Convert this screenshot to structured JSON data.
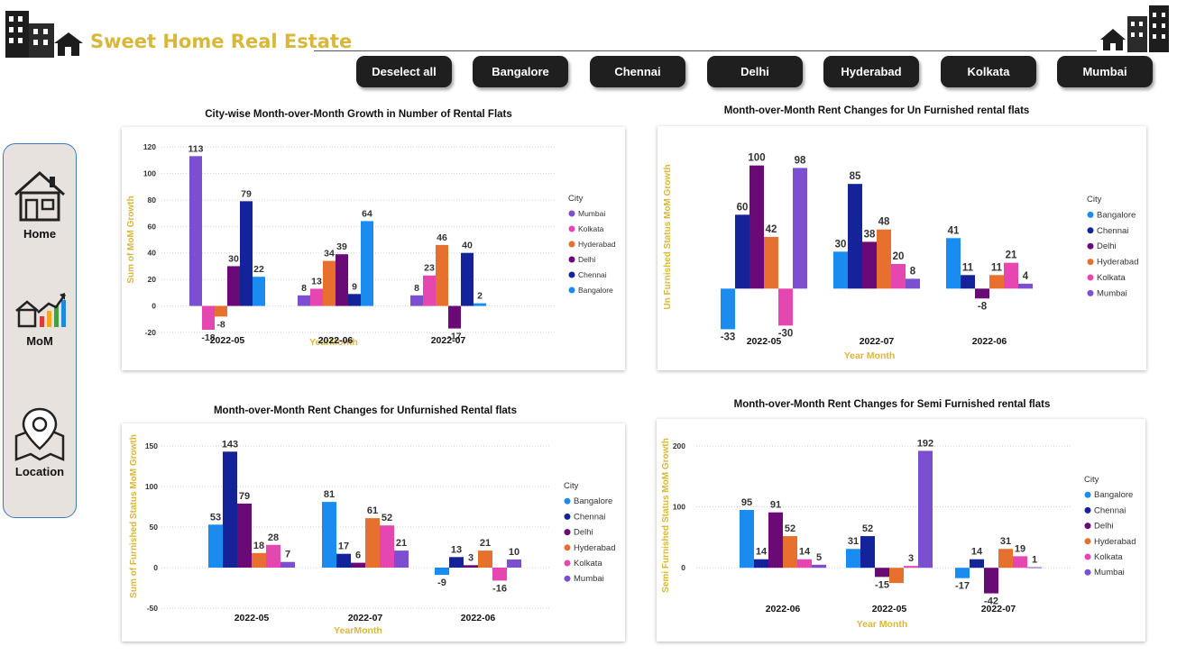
{
  "brand": {
    "name": "Sweet Home Real Estate"
  },
  "filters": [
    "Deselect all",
    "Bangalore",
    "Chennai",
    "Delhi",
    "Hyderabad",
    "Kolkata",
    "Mumbai"
  ],
  "nav": [
    {
      "label": "Home",
      "icon": "house-icon"
    },
    {
      "label": "MoM",
      "icon": "growth-chart-icon"
    },
    {
      "label": "Location",
      "icon": "map-pin-icon"
    }
  ],
  "colors": {
    "Bangalore": "#1a8cf0",
    "Chennai": "#14239a",
    "Hyderabad": "#e8702e",
    "Delhi": "#6a0a77",
    "Kolkata": "#e646b0",
    "Mumbai": "#7c4fd0",
    "gold": "#d8b73a"
  },
  "chart_data": [
    {
      "type": "bar",
      "title": "City-wise Month-over-Month Growth in Number of Rental Flats",
      "xlabel": "YearMonth",
      "ylabel": "Sum of MoM Growth",
      "legend_title": "City",
      "legend_position": "right",
      "legend_style": "small",
      "ylim": [
        -20,
        120
      ],
      "yticks": [
        -20,
        0,
        20,
        40,
        60,
        80,
        100,
        120
      ],
      "categories": [
        "2022-05",
        "2022-06",
        "2022-07"
      ],
      "series": [
        {
          "name": "Mumbai",
          "values": [
            113,
            8,
            8
          ]
        },
        {
          "name": "Kolkata",
          "values": [
            -18,
            13,
            23
          ]
        },
        {
          "name": "Hyderabad",
          "values": [
            -8,
            34,
            46
          ]
        },
        {
          "name": "Delhi",
          "values": [
            30,
            39,
            -17
          ]
        },
        {
          "name": "Chennai",
          "values": [
            79,
            9,
            40
          ]
        },
        {
          "name": "Bangalore",
          "values": [
            22,
            64,
            2
          ]
        }
      ],
      "data_labels": [
        [
          "113",
          "-18",
          "-8",
          "30",
          "79",
          "22"
        ],
        [
          "8",
          "13",
          "34",
          "39",
          "9",
          "64"
        ],
        [
          "8",
          "23",
          "46",
          "-17",
          "40",
          "2"
        ]
      ],
      "grid": true
    },
    {
      "type": "bar",
      "title": "Month-over-Month Rent Changes for Un Furnished rental flats",
      "xlabel": "Year Month",
      "ylabel": "Un Furnished Status MoM Growth",
      "legend_title": "City",
      "legend_position": "right",
      "ylim": [
        -40,
        110
      ],
      "yticks": [],
      "categories": [
        "2022-05",
        "2022-07",
        "2022-06"
      ],
      "series": [
        {
          "name": "Bangalore",
          "values": [
            -33,
            30,
            41
          ]
        },
        {
          "name": "Chennai",
          "values": [
            60,
            85,
            11
          ]
        },
        {
          "name": "Delhi",
          "values": [
            100,
            38,
            -8
          ]
        },
        {
          "name": "Hyderabad",
          "values": [
            42,
            48,
            11
          ]
        },
        {
          "name": "Kolkata",
          "values": [
            -30,
            20,
            21
          ]
        },
        {
          "name": "Mumbai",
          "values": [
            98,
            8,
            4
          ]
        }
      ],
      "grid": false
    },
    {
      "type": "bar",
      "title": "Month-over-Month Rent Changes for Unfurnished Rental flats",
      "xlabel": "YearMonth",
      "ylabel": "Sum of Furnished Status MoM Growth",
      "legend_title": "City",
      "legend_position": "right",
      "ylim": [
        -50,
        150
      ],
      "yticks": [
        -50,
        0,
        50,
        100,
        150
      ],
      "categories": [
        "2022-05",
        "2022-07",
        "2022-06"
      ],
      "series": [
        {
          "name": "Bangalore",
          "values": [
            53,
            81,
            -9
          ]
        },
        {
          "name": "Chennai",
          "values": [
            143,
            17,
            13
          ]
        },
        {
          "name": "Delhi",
          "values": [
            79,
            6,
            3
          ]
        },
        {
          "name": "Hyderabad",
          "values": [
            18,
            61,
            21
          ]
        },
        {
          "name": "Kolkata",
          "values": [
            28,
            52,
            -16
          ]
        },
        {
          "name": "Mumbai",
          "values": [
            7,
            21,
            10
          ]
        }
      ],
      "grid": true
    },
    {
      "type": "bar",
      "title": "Month-over-Month Rent Changes for Semi Furnished rental flats",
      "xlabel": "Year Month",
      "ylabel": "Semi Furnished Status MoM Growth",
      "legend_title": "City",
      "legend_position": "right",
      "ylim": [
        -50,
        200
      ],
      "yticks": [
        0,
        100,
        200
      ],
      "categories": [
        "2022-06",
        "2022-05",
        "2022-07"
      ],
      "series": [
        {
          "name": "Bangalore",
          "values": [
            95,
            31,
            -17
          ]
        },
        {
          "name": "Chennai",
          "values": [
            14,
            52,
            14
          ]
        },
        {
          "name": "Delhi",
          "values": [
            91,
            -15,
            -42
          ]
        },
        {
          "name": "Hyderabad",
          "values": [
            52,
            -25,
            31
          ]
        },
        {
          "name": "Kolkata",
          "values": [
            14,
            3,
            19
          ]
        },
        {
          "name": "Mumbai",
          "values": [
            5,
            192,
            1
          ]
        }
      ],
      "data_labels": [
        [
          "95",
          "14",
          "91",
          "52",
          "14",
          "5"
        ],
        [
          "31",
          "52",
          "-15",
          "",
          "3",
          "192"
        ],
        [
          "-17",
          "14",
          "-42",
          "31",
          "19",
          "1"
        ]
      ],
      "grid": true
    }
  ]
}
